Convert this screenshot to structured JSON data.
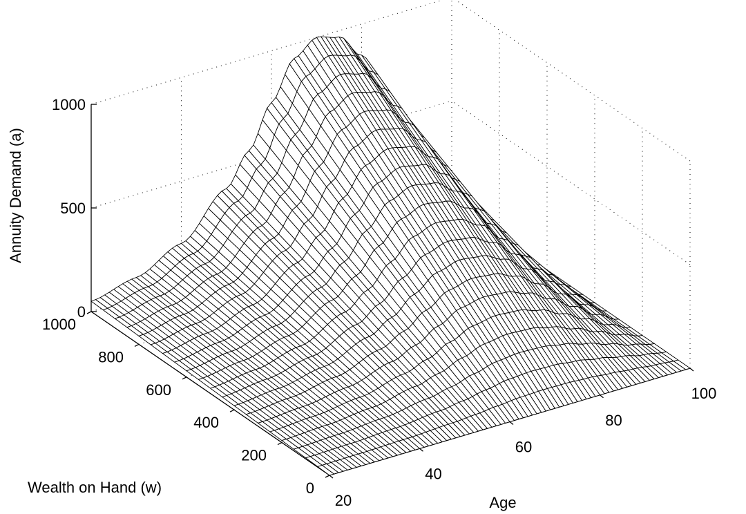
{
  "chart_data": {
    "type": "surface",
    "title": "",
    "xlabel": "Age",
    "ylabel": "Wealth on Hand (w)",
    "zlabel": "Annuity Demand (a)",
    "xlim": [
      20,
      100
    ],
    "ylim": [
      0,
      1000
    ],
    "zlim": [
      0,
      1000
    ],
    "x_ticks": [
      "20",
      "40",
      "60",
      "80",
      "100"
    ],
    "y_ticks": [
      "0",
      "200",
      "400",
      "600",
      "800",
      "1000"
    ],
    "z_ticks": [
      "0",
      "500",
      "1000"
    ],
    "grid": true,
    "surface_description": "a(age,w) ~ w * shape(age); shape rises from ~0.05 at age 20 to 1.0 around ages 65-75, falling back to 0 at age 100",
    "shape_by_age": {
      "age": [
        20,
        30,
        40,
        50,
        55,
        60,
        65,
        70,
        75,
        80,
        85,
        90,
        95,
        100
      ],
      "fraction_of_wealth": [
        0.05,
        0.1,
        0.2,
        0.4,
        0.55,
        0.75,
        0.93,
        1.0,
        0.97,
        0.85,
        0.65,
        0.42,
        0.18,
        0.0
      ]
    },
    "peak": {
      "age": 70,
      "wealth": 1000,
      "annuity_demand": 1000
    }
  }
}
